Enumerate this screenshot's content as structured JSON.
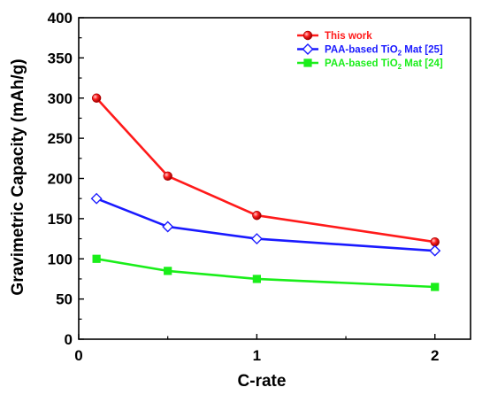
{
  "chart_data": {
    "type": "line",
    "xlabel": "C-rate",
    "ylabel": "Gravimetric Capacity (mAh/g)",
    "xlim": [
      0,
      2.2
    ],
    "ylim": [
      0,
      400
    ],
    "x_ticks": [
      0,
      1,
      2
    ],
    "y_ticks": [
      0,
      50,
      100,
      150,
      200,
      250,
      300,
      350,
      400
    ],
    "grid": false,
    "legend_position": "top-right",
    "series": [
      {
        "name": "This work",
        "name_main": "This work",
        "name_sub": "",
        "name_tail": "",
        "color": "#ff1a1a",
        "marker": "circle",
        "x": [
          0.1,
          0.5,
          1,
          2
        ],
        "values": [
          300,
          203,
          154,
          121
        ]
      },
      {
        "name": "PAA-based TiO2 Mat [25]",
        "name_main": "PAA-based TiO",
        "name_sub": "2",
        "name_tail": " Mat [25]",
        "color": "#1a1aff",
        "marker": "diamond-open",
        "x": [
          0.1,
          0.5,
          1,
          2
        ],
        "values": [
          175,
          140,
          125,
          110
        ]
      },
      {
        "name": "PAA-based TiO2 Mat [24]",
        "name_main": "PAA-based TiO",
        "name_sub": "2",
        "name_tail": " Mat [24]",
        "color": "#1aee1a",
        "marker": "square",
        "x": [
          0.1,
          0.5,
          1,
          2
        ],
        "values": [
          100,
          85,
          75,
          65
        ]
      }
    ]
  }
}
